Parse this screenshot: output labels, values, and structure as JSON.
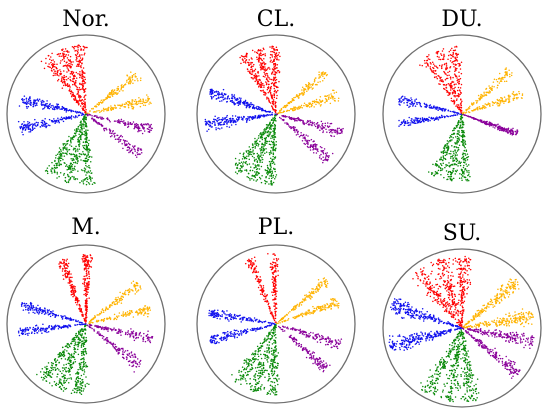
{
  "chart_data": [
    {
      "type": "scatter",
      "title": "Nor.",
      "style": "radial-clusters",
      "series": [
        {
          "color": "#ff0000",
          "angle_deg": -110,
          "spread_deg": 32,
          "extent": 0.88,
          "points": 420,
          "lobes": 3
        },
        {
          "color": "#ffb300",
          "angle_deg": -25,
          "spread_deg": 28,
          "extent": 0.84,
          "points": 260,
          "lobes": 2
        },
        {
          "color": "#8a009a",
          "angle_deg": 25,
          "spread_deg": 26,
          "extent": 0.86,
          "points": 260,
          "lobes": 2
        },
        {
          "color": "#0a8a0a",
          "angle_deg": 105,
          "spread_deg": 34,
          "extent": 0.9,
          "points": 460,
          "lobes": 3
        },
        {
          "color": "#1010ee",
          "angle_deg": 180,
          "spread_deg": 28,
          "extent": 0.86,
          "points": 320,
          "lobes": 2
        }
      ]
    },
    {
      "type": "scatter",
      "title": "CL.",
      "style": "radial-clusters",
      "series": [
        {
          "color": "#ff0000",
          "angle_deg": -105,
          "spread_deg": 30,
          "extent": 0.86,
          "points": 400,
          "lobes": 3
        },
        {
          "color": "#ffb300",
          "angle_deg": -28,
          "spread_deg": 26,
          "extent": 0.82,
          "points": 250,
          "lobes": 2
        },
        {
          "color": "#8a009a",
          "angle_deg": 28,
          "spread_deg": 28,
          "extent": 0.88,
          "points": 300,
          "lobes": 2
        },
        {
          "color": "#0a8a0a",
          "angle_deg": 110,
          "spread_deg": 32,
          "extent": 0.9,
          "points": 440,
          "lobes": 3
        },
        {
          "color": "#1010ee",
          "angle_deg": 185,
          "spread_deg": 30,
          "extent": 0.9,
          "points": 380,
          "lobes": 2
        }
      ]
    },
    {
      "type": "scatter",
      "title": "DU.",
      "style": "radial-clusters",
      "series": [
        {
          "color": "#ff0000",
          "angle_deg": -110,
          "spread_deg": 30,
          "extent": 0.86,
          "points": 300,
          "lobes": 3
        },
        {
          "color": "#ffb300",
          "angle_deg": -30,
          "spread_deg": 26,
          "extent": 0.82,
          "points": 230,
          "lobes": 2
        },
        {
          "color": "#8a009a",
          "angle_deg": 20,
          "spread_deg": 18,
          "extent": 0.74,
          "points": 200,
          "lobes": 1
        },
        {
          "color": "#0a8a0a",
          "angle_deg": 100,
          "spread_deg": 30,
          "extent": 0.86,
          "points": 380,
          "lobes": 3
        },
        {
          "color": "#1010ee",
          "angle_deg": 182,
          "spread_deg": 24,
          "extent": 0.82,
          "points": 260,
          "lobes": 2
        }
      ]
    },
    {
      "type": "scatter",
      "title": "M.",
      "style": "radial-clusters",
      "series": [
        {
          "color": "#ff0000",
          "angle_deg": -100,
          "spread_deg": 24,
          "extent": 0.88,
          "points": 340,
          "lobes": 2
        },
        {
          "color": "#ffb300",
          "angle_deg": -25,
          "spread_deg": 26,
          "extent": 0.84,
          "points": 240,
          "lobes": 2
        },
        {
          "color": "#8a009a",
          "angle_deg": 25,
          "spread_deg": 28,
          "extent": 0.86,
          "points": 270,
          "lobes": 2
        },
        {
          "color": "#0a8a0a",
          "angle_deg": 112,
          "spread_deg": 36,
          "extent": 0.9,
          "points": 460,
          "lobes": 3
        },
        {
          "color": "#1010ee",
          "angle_deg": 185,
          "spread_deg": 26,
          "extent": 0.86,
          "points": 300,
          "lobes": 2
        }
      ]
    },
    {
      "type": "scatter",
      "title": "PL.",
      "style": "radial-clusters",
      "series": [
        {
          "color": "#ff0000",
          "angle_deg": -102,
          "spread_deg": 22,
          "extent": 0.9,
          "points": 260,
          "lobes": 2
        },
        {
          "color": "#ffb300",
          "angle_deg": -30,
          "spread_deg": 24,
          "extent": 0.86,
          "points": 260,
          "lobes": 2
        },
        {
          "color": "#8a009a",
          "angle_deg": 30,
          "spread_deg": 26,
          "extent": 0.86,
          "points": 260,
          "lobes": 2
        },
        {
          "color": "#0a8a0a",
          "angle_deg": 108,
          "spread_deg": 34,
          "extent": 0.9,
          "points": 420,
          "lobes": 3
        },
        {
          "color": "#1010ee",
          "angle_deg": 178,
          "spread_deg": 26,
          "extent": 0.86,
          "points": 300,
          "lobes": 2
        }
      ]
    },
    {
      "type": "scatter",
      "title": "SU.",
      "style": "radial-clusters",
      "series": [
        {
          "color": "#ff0000",
          "angle_deg": -108,
          "spread_deg": 42,
          "extent": 0.92,
          "points": 480,
          "lobes": 3
        },
        {
          "color": "#ffb300",
          "angle_deg": -25,
          "spread_deg": 34,
          "extent": 0.92,
          "points": 380,
          "lobes": 2
        },
        {
          "color": "#8a009a",
          "angle_deg": 25,
          "spread_deg": 32,
          "extent": 0.92,
          "points": 360,
          "lobes": 2
        },
        {
          "color": "#0a8a0a",
          "angle_deg": 100,
          "spread_deg": 40,
          "extent": 0.94,
          "points": 460,
          "lobes": 3
        },
        {
          "color": "#1010ee",
          "angle_deg": 182,
          "spread_deg": 36,
          "extent": 0.94,
          "points": 460,
          "lobes": 2
        }
      ]
    }
  ]
}
